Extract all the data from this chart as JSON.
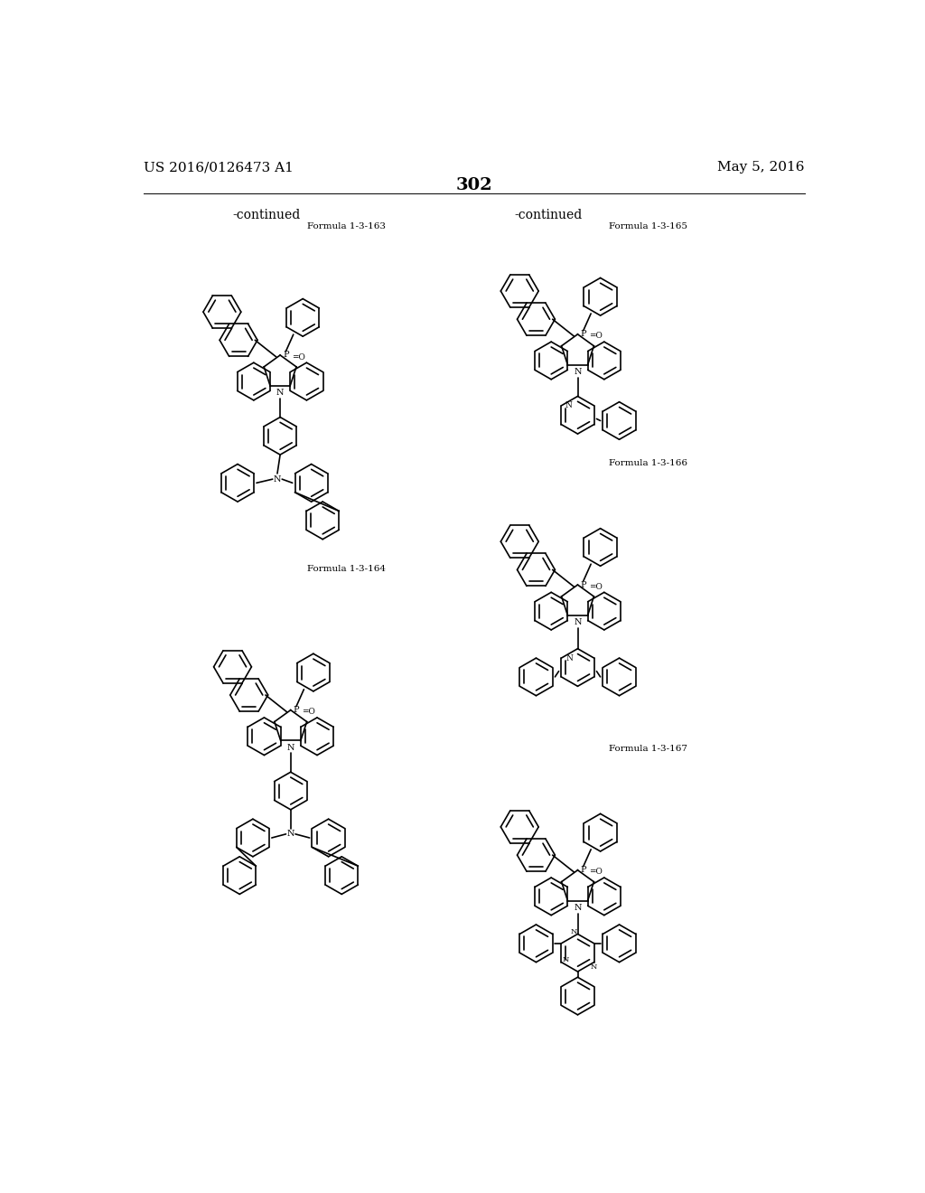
{
  "page_header_left": "US 2016/0126473 A1",
  "page_header_right": "May 5, 2016",
  "page_number": "302",
  "continued_left": "-continued",
  "continued_right": "-continued",
  "formula_labels": [
    "Formula 1-3-163",
    "Formula 1-3-164",
    "Formula 1-3-165",
    "Formula 1-3-166",
    "Formula 1-3-167"
  ],
  "bg_color": "#ffffff",
  "text_color": "#000000",
  "header_fontsize": 11,
  "page_num_fontsize": 14,
  "continued_fontsize": 10,
  "formula_label_fontsize": 7.5,
  "line_color": "#000000",
  "line_width": 1.2
}
